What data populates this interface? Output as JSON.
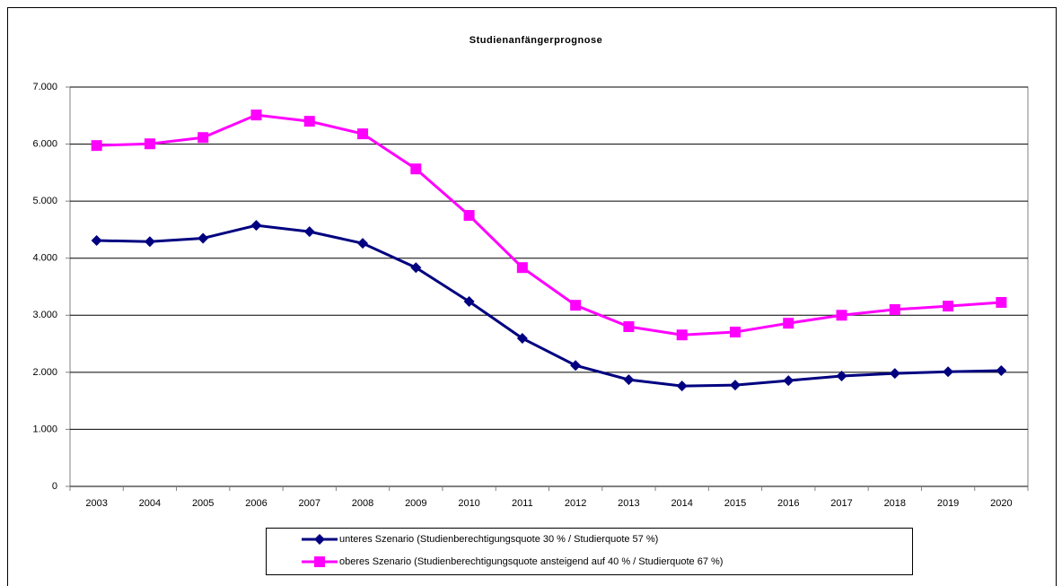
{
  "chart_data": {
    "type": "line",
    "title": "Studienanfängerprognose",
    "categories": [
      "2003",
      "2004",
      "2005",
      "2006",
      "2007",
      "2008",
      "2009",
      "2010",
      "2011",
      "2012",
      "2013",
      "2014",
      "2015",
      "2016",
      "2017",
      "2018",
      "2019",
      "2020"
    ],
    "series": [
      {
        "name": "unteres Szenario (Studienberechtigungsquote 30 % / Studierquote 57 %)",
        "color": "#000080",
        "marker": "diamond",
        "values": [
          4310,
          4290,
          4350,
          4575,
          4465,
          4260,
          3835,
          3240,
          2595,
          2120,
          1870,
          1760,
          1775,
          1855,
          1935,
          1980,
          2010,
          2030
        ]
      },
      {
        "name": "oberes Szenario (Studienberechtigungsquote ansteigend auf 40 % / Studierquote 67 %)",
        "color": "#ff00ff",
        "marker": "square",
        "values": [
          5975,
          6005,
          6115,
          6510,
          6400,
          6180,
          5565,
          4750,
          3835,
          3175,
          2800,
          2655,
          2705,
          2860,
          3000,
          3100,
          3160,
          3225
        ]
      }
    ],
    "ylim": [
      0,
      7000
    ],
    "yticks": [
      0,
      {
        "value": 1000,
        "label": "1.000"
      },
      {
        "value": 2000,
        "label": "2.000"
      },
      {
        "value": 3000,
        "label": "3.000"
      },
      {
        "value": 4000,
        "label": "4.000"
      },
      {
        "value": 5000,
        "label": "5.000"
      },
      {
        "value": 6000,
        "label": "6.000"
      },
      {
        "value": 7000,
        "label": "7.000"
      }
    ],
    "grid": true,
    "legend": "bottom"
  }
}
